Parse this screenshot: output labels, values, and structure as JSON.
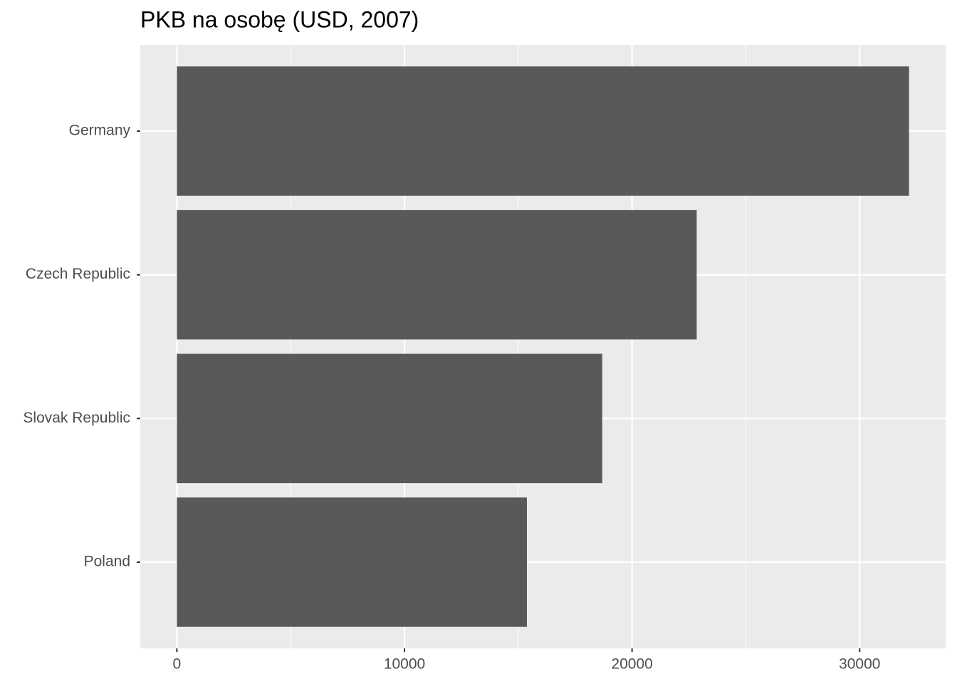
{
  "chart_data": {
    "type": "bar",
    "orientation": "horizontal",
    "title": "PKB na osobę (USD, 2007)",
    "categories": [
      "Germany",
      "Czech Republic",
      "Slovak Republic",
      "Poland"
    ],
    "values": [
      32170,
      22840,
      18690,
      15380
    ],
    "color": "#595959",
    "xlim": [
      -1608,
      33777
    ],
    "xticks": [
      0,
      10000,
      20000,
      30000
    ],
    "xminor": [
      5000,
      15000,
      25000
    ],
    "grid": true
  }
}
